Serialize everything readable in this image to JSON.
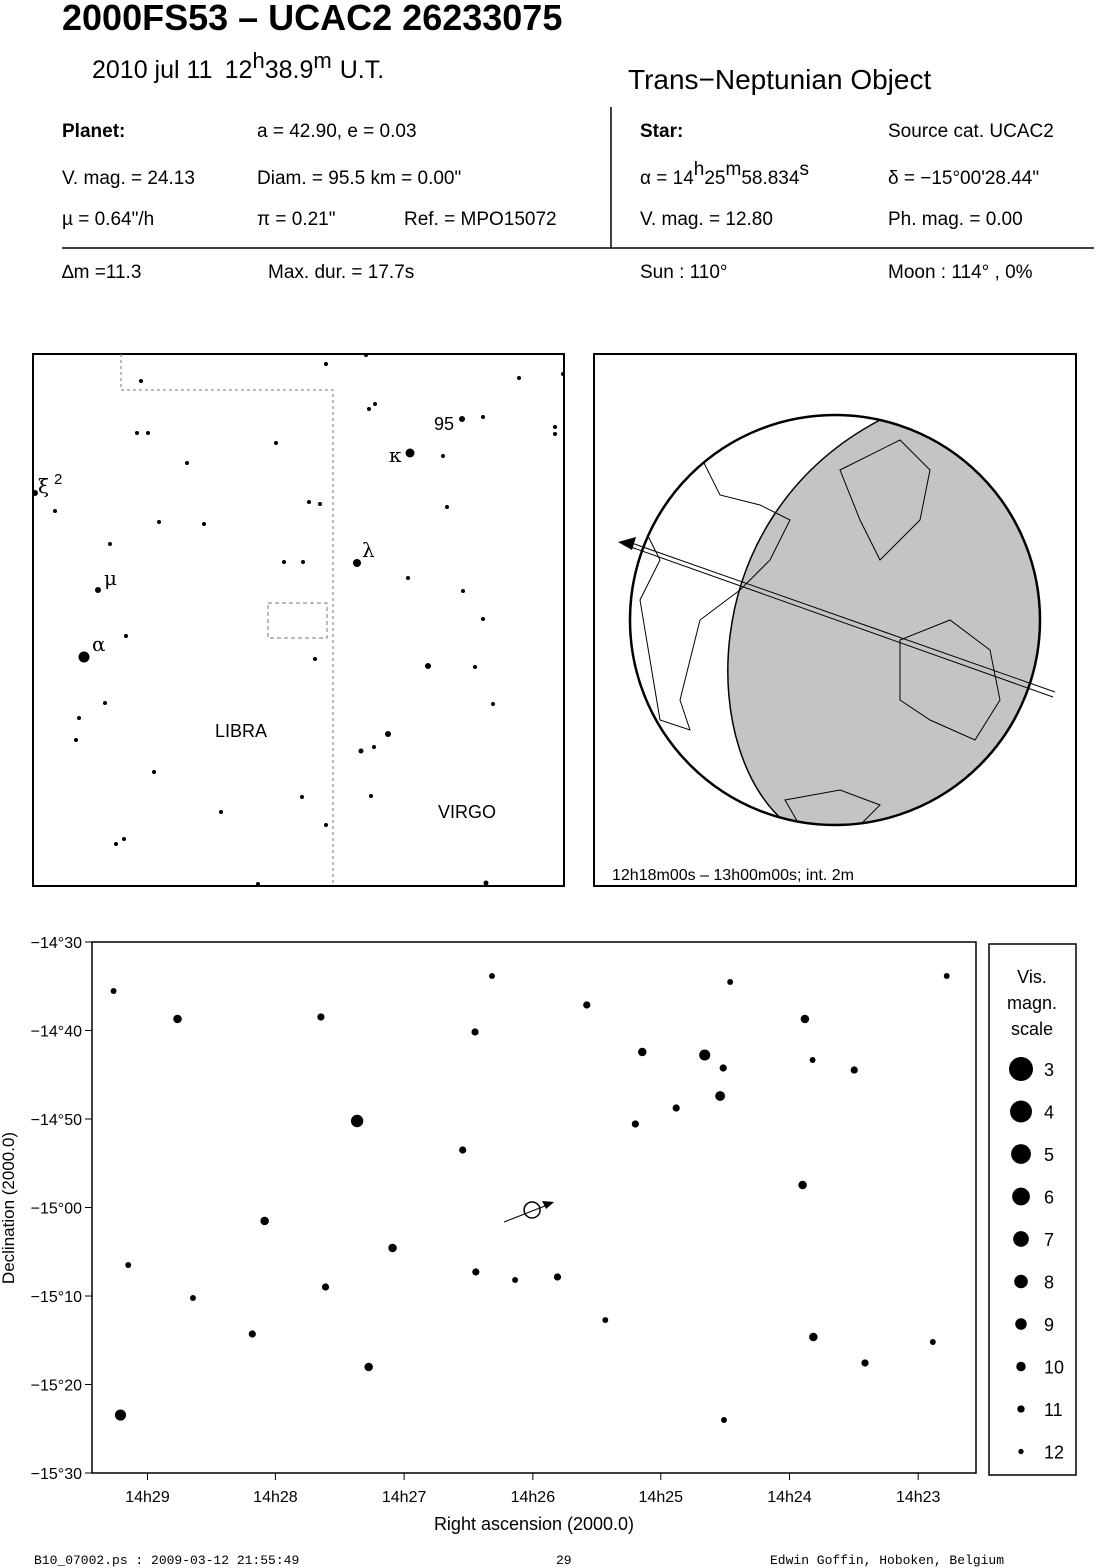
{
  "header": {
    "title": "2000FS53  –  UCAC2 26233075",
    "date": "2010 jul 11",
    "time_hours": "12",
    "time_hours_unit": "h",
    "time_minutes": "38.9",
    "time_minutes_unit": "m",
    "time_scale": "U.T.",
    "object_class": "Trans−Neptunian Object"
  },
  "planet": {
    "label": "Planet:",
    "orbit": "a = 42.90, e = 0.03",
    "vmag": "V. mag. = 24.13",
    "diam": "Diam. = 95.5 km = 0.00\"",
    "motion": "µ =  0.64\"/h",
    "parallax": "π =  0.21\"",
    "ref": "Ref. = MPO15072"
  },
  "star": {
    "label": "Star:",
    "source": "Source cat.  UCAC2",
    "ra_label": "α = ",
    "ra_h": "14",
    "ra_h_unit": "h",
    "ra_m": "25",
    "ra_m_unit": "m",
    "ra_s": "58.834",
    "ra_s_unit": "s",
    "dec": "δ = −15°00'28.44\"",
    "vmag": "V. mag. = 12.80",
    "phmag": "Ph. mag. =  0.00"
  },
  "event": {
    "dmag": "∆m =11.3",
    "maxdur": "Max. dur. = 17.7s",
    "sun": "Sun : 110°",
    "moon": "Moon : 114° ,  0%"
  },
  "finder_chart": {
    "labels": [
      "ξ",
      "2",
      "κ",
      "λ",
      "μ",
      "α",
      "95",
      "LIBRA",
      "VIRGO"
    ]
  },
  "globe": {
    "caption": "12h18m00s – 13h00m00s; int.  2m"
  },
  "chart_data": {
    "type": "scatter",
    "xlabel": "Right ascension (2000.0)",
    "ylabel": "Declination (2000.0)",
    "xlim": [
      14.4905,
      14.3758
    ],
    "ylim": [
      -15.5,
      -14.5
    ],
    "xticks": [
      {
        "value": 14.4833,
        "label": "14h29"
      },
      {
        "value": 14.4667,
        "label": "14h28"
      },
      {
        "value": 14.45,
        "label": "14h27"
      },
      {
        "value": 14.4333,
        "label": "14h26"
      },
      {
        "value": 14.4167,
        "label": "14h25"
      },
      {
        "value": 14.4,
        "label": "14h24"
      },
      {
        "value": 14.3833,
        "label": "14h23"
      }
    ],
    "yticks": [
      {
        "value": -14.5,
        "label": "−14°30"
      },
      {
        "value": -14.6667,
        "label": "−14°40"
      },
      {
        "value": -14.8333,
        "label": "−14°50"
      },
      {
        "value": -15,
        "label": "−15°00"
      },
      {
        "value": -15.1667,
        "label": "−15°10"
      },
      {
        "value": -15.3333,
        "label": "−15°20"
      },
      {
        "value": -15.5,
        "label": "−15°30"
      }
    ],
    "x": [
      14.4561,
      14.4868,
      14.411,
      14.409,
      14.3983,
      14.398,
      14.4191,
      14.4794,
      14.4681,
      14.4515,
      14.4546,
      14.3969,
      14.3902,
      14.4147,
      14.4086,
      14.4301,
      14.4408,
      14.4608,
      14.4602,
      14.4697,
      14.4263,
      14.4424,
      14.4407,
      14.42,
      14.3916,
      14.4239,
      14.4774,
      14.4356,
      14.4077,
      14.397,
      14.4877,
      14.4858,
      14.4085,
      14.3814,
      14.3796,
      14.4386
    ],
    "y": [
      -14.8371,
      -15.3908,
      -14.7128,
      -14.79,
      -14.9576,
      -14.645,
      -14.7072,
      -14.645,
      -15.0254,
      -15.0763,
      -15.3004,
      -15.2439,
      -15.2928,
      -14.8126,
      -14.7373,
      -15.1309,
      -14.6695,
      -14.6412,
      -15.1497,
      -15.2382,
      -14.6186,
      -14.8917,
      -15.1215,
      -14.8427,
      -14.7411,
      -15.2119,
      -15.1704,
      -15.1365,
      -14.5753,
      -14.7222,
      -14.5923,
      -15.1083,
      -15.4002,
      -15.2533,
      -14.564,
      -14.564
    ],
    "mag": [
      5,
      6,
      6,
      7,
      8,
      8,
      8,
      8,
      8,
      8,
      8,
      8,
      9,
      9,
      9,
      9,
      9,
      9,
      9,
      9,
      9,
      9,
      9,
      9,
      9,
      10,
      10,
      10,
      10,
      10,
      10,
      10,
      10,
      10,
      10,
      10
    ],
    "target": {
      "x": 14.4334,
      "y": -15.0047
    },
    "legend_title": [
      "Vis.",
      "magn.",
      "scale"
    ],
    "legend_magnitudes": [
      3,
      4,
      5,
      6,
      7,
      8,
      9,
      10,
      11,
      12
    ]
  },
  "footer": {
    "file": "B10_07002.ps : 2009-03-12 21:55:49",
    "page": "29",
    "author": "Edwin Goffin, Hoboken, Belgium"
  }
}
